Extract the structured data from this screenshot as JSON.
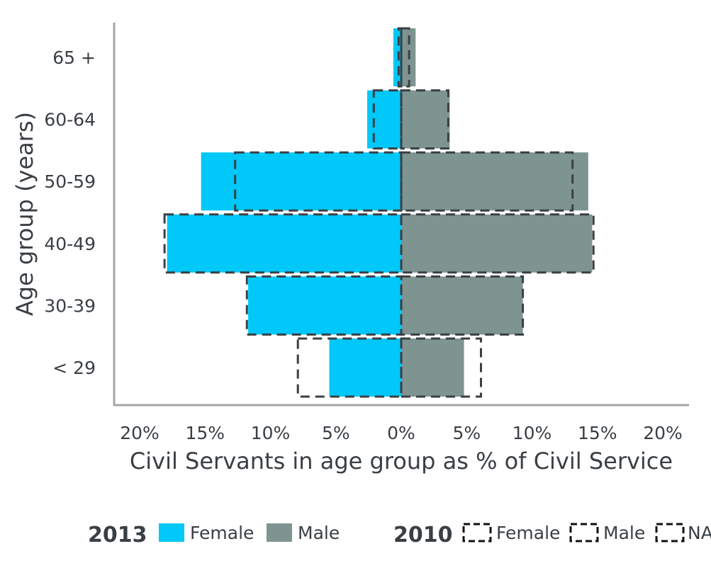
{
  "chart_data": {
    "type": "bar",
    "orientation": "horizontal-population-pyramid",
    "categories": [
      "65 +",
      "60-64",
      "50-59",
      "40-49",
      "30-39",
      "< 29"
    ],
    "x_ticks": [
      "20%",
      "15%",
      "10%",
      "5%",
      "0%",
      "5%",
      "10%",
      "15%",
      "20%"
    ],
    "xlim": [
      -20,
      20
    ],
    "xlabel": "Civil Servants in age group as % of Civil Service",
    "ylabel": "Age group (years)",
    "series": [
      {
        "name": "Female",
        "year": "2013",
        "side": "left",
        "style": "filled",
        "color": "#00c8f8",
        "values": [
          0.6,
          2.6,
          15.3,
          17.9,
          11.7,
          5.5
        ]
      },
      {
        "name": "Male",
        "year": "2013",
        "side": "right",
        "style": "filled",
        "color": "#7d9490",
        "values": [
          1.1,
          3.7,
          14.3,
          14.6,
          9.3,
          4.8
        ]
      },
      {
        "name": "Female",
        "year": "2010",
        "side": "left",
        "style": "dashed-outline",
        "color": "#3a3f44",
        "values": [
          0.2,
          2.1,
          12.7,
          18.1,
          11.8,
          7.9
        ]
      },
      {
        "name": "Male",
        "year": "2010",
        "side": "right",
        "style": "dashed-outline",
        "color": "#3a3f44",
        "values": [
          0.6,
          3.6,
          13.1,
          14.7,
          9.3,
          6.1
        ]
      }
    ],
    "legend": {
      "placement": "bottom",
      "groups": [
        {
          "title": "2013",
          "items": [
            {
              "label": "Female",
              "style": "filled",
              "color": "#00c8f8"
            },
            {
              "label": "Male",
              "style": "filled",
              "color": "#7d9490"
            }
          ]
        },
        {
          "title": "2010",
          "items": [
            {
              "label": "Female",
              "style": "dashed-outline"
            },
            {
              "label": "Male",
              "style": "dashed-outline"
            },
            {
              "label": "NA",
              "style": "dashed-outline"
            }
          ]
        }
      ]
    },
    "grid": false
  }
}
